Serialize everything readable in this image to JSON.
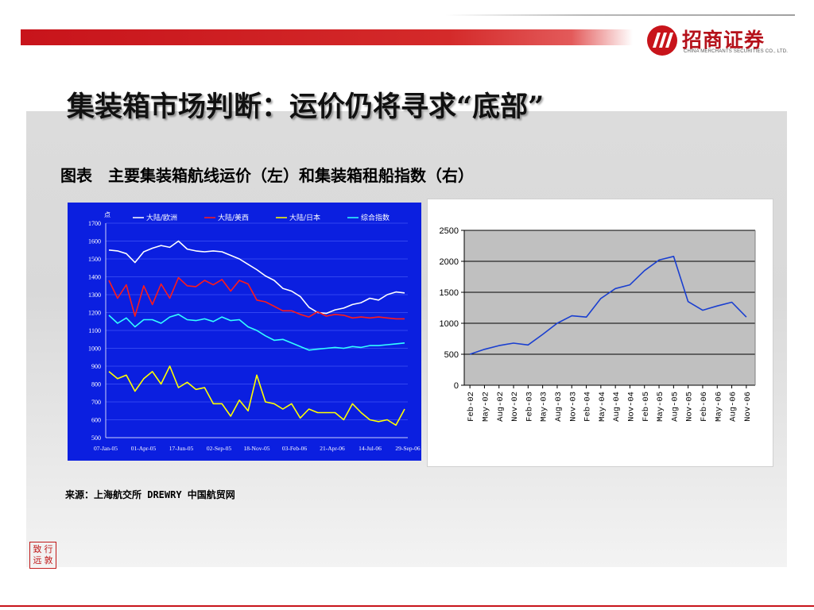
{
  "header": {
    "logo_cn": "招商证券",
    "logo_en": "CHINA MERCHANTS SECURITIES CO., LTD.",
    "logo_mark_color": "#c8141b"
  },
  "slide": {
    "title": "集装箱市场判断：运价仍将寻求“底部”",
    "figure_caption": "图表　主要集装箱航线运价（左）和集装箱租船指数（右）",
    "source_note": "来源：上海航交所 DREWRY 中国航贸网",
    "seal_text": "致行远敦"
  },
  "chart_data": [
    {
      "type": "line",
      "ylabel": "点",
      "ylim": [
        500,
        1700
      ],
      "yticks": [
        "1700",
        "1600",
        "1500",
        "1400",
        "1300",
        "1200",
        "1100",
        "1000",
        "900",
        "800",
        "700",
        "600",
        "500"
      ],
      "x_ticks": [
        "07-Jan-05",
        "01-Apr-05",
        "17-Jun-05",
        "02-Sep-05",
        "18-Nov-05",
        "03-Feb-06",
        "21-Apr-06",
        "14-Jul-06",
        "29-Sep-06"
      ],
      "background": "#0b1fe0",
      "grid": true,
      "legend_position": "top",
      "series": [
        {
          "name": "大陆/欧洲",
          "color": "#ffffff",
          "values": [
            1550,
            1545,
            1530,
            1480,
            1540,
            1560,
            1575,
            1565,
            1600,
            1555,
            1545,
            1540,
            1545,
            1540,
            1520,
            1500,
            1470,
            1440,
            1405,
            1380,
            1335,
            1320,
            1290,
            1230,
            1200,
            1195,
            1215,
            1225,
            1245,
            1255,
            1280,
            1270,
            1300,
            1315,
            1310
          ]
        },
        {
          "name": "大陆/美西",
          "color": "#ff1a1a",
          "values": [
            1380,
            1280,
            1355,
            1180,
            1350,
            1245,
            1360,
            1280,
            1395,
            1350,
            1345,
            1380,
            1355,
            1385,
            1320,
            1380,
            1360,
            1270,
            1260,
            1235,
            1210,
            1210,
            1190,
            1175,
            1205,
            1180,
            1190,
            1185,
            1170,
            1175,
            1170,
            1175,
            1170,
            1165,
            1165
          ]
        },
        {
          "name": "大陆/日本",
          "color": "#ffff00",
          "values": [
            870,
            830,
            850,
            760,
            830,
            870,
            800,
            900,
            780,
            810,
            770,
            780,
            690,
            690,
            620,
            710,
            650,
            850,
            700,
            690,
            660,
            690,
            610,
            660,
            640,
            640,
            640,
            600,
            690,
            640,
            600,
            590,
            600,
            570,
            660
          ]
        },
        {
          "name": "综合指数",
          "color": "#33ffff",
          "values": [
            1185,
            1140,
            1170,
            1120,
            1160,
            1160,
            1140,
            1175,
            1190,
            1160,
            1155,
            1165,
            1150,
            1175,
            1155,
            1160,
            1120,
            1100,
            1070,
            1045,
            1050,
            1030,
            1010,
            990,
            995,
            1000,
            1005,
            1000,
            1010,
            1005,
            1015,
            1015,
            1020,
            1025,
            1030
          ]
        }
      ]
    },
    {
      "type": "line",
      "ylim": [
        0,
        2500
      ],
      "yticks": [
        "2500",
        "2000",
        "1500",
        "1000",
        "500",
        "0"
      ],
      "categories": [
        "Feb-02",
        "May-02",
        "Aug-02",
        "Nov-02",
        "Feb-03",
        "May-03",
        "Aug-03",
        "Nov-03",
        "Feb-04",
        "May-04",
        "Aug-04",
        "Nov-04",
        "Feb-05",
        "May-05",
        "Aug-05",
        "Nov-05",
        "Feb-06",
        "May-06",
        "Aug-06",
        "Nov-06"
      ],
      "background": "#c0c0c0",
      "grid": true,
      "series": [
        {
          "color": "#1a3fd0",
          "values": [
            500,
            580,
            640,
            680,
            650,
            820,
            1000,
            1120,
            1100,
            1400,
            1560,
            1620,
            1850,
            2020,
            2080,
            1350,
            1210,
            1280,
            1340,
            1100
          ]
        }
      ]
    }
  ]
}
